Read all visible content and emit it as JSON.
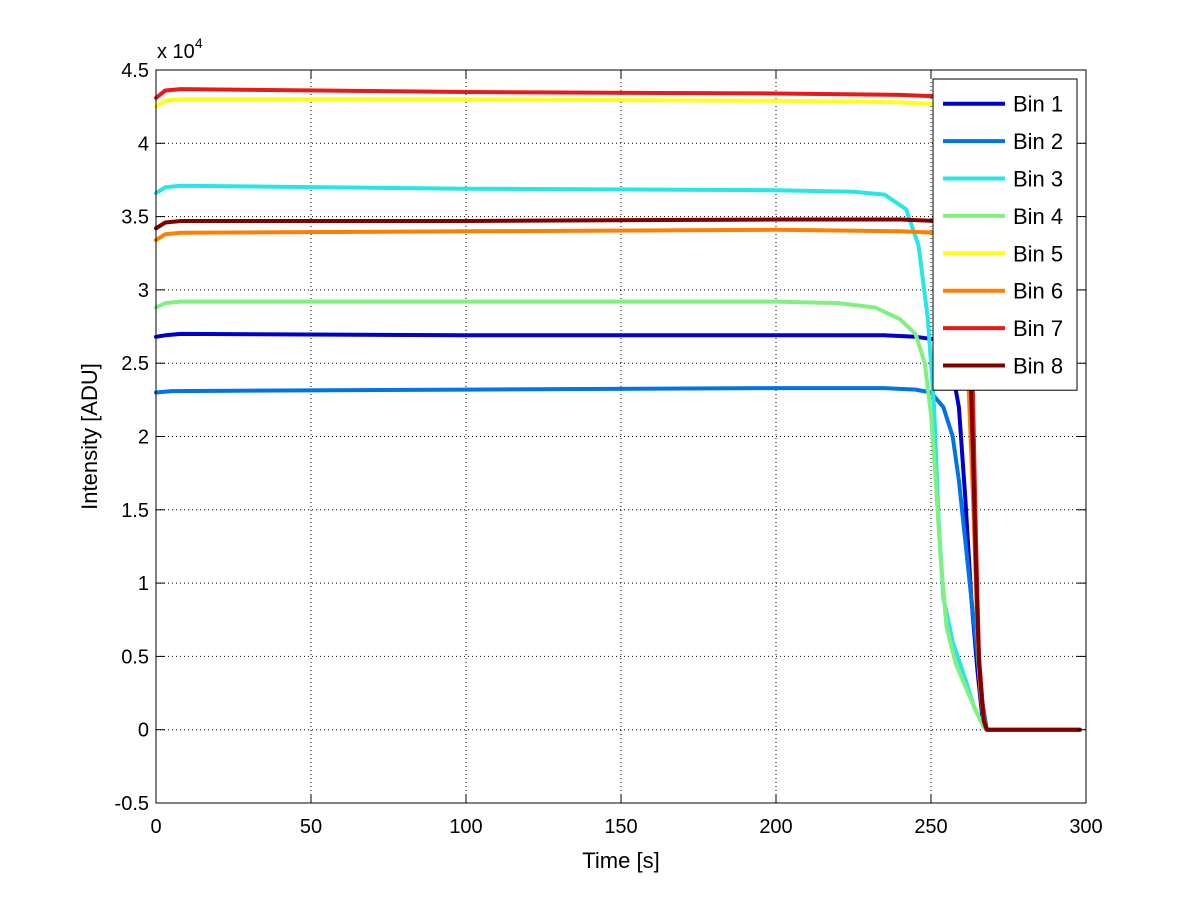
{
  "chart_data": {
    "type": "line",
    "title": "",
    "xlabel": "Time [s]",
    "ylabel": "Intensity [ADU]",
    "exponent_label": {
      "base": "x 10",
      "power": "4"
    },
    "xlim": [
      0,
      300
    ],
    "ylim": [
      -0.5,
      4.5
    ],
    "xticks": [
      0,
      50,
      100,
      150,
      200,
      250,
      300
    ],
    "xtick_labels": [
      "0",
      "50",
      "100",
      "150",
      "200",
      "250",
      "300"
    ],
    "yticks": [
      -0.5,
      0,
      0.5,
      1,
      1.5,
      2,
      2.5,
      3,
      3.5,
      4,
      4.5
    ],
    "ytick_labels": [
      "-0.5",
      "0",
      "0.5",
      "1",
      "1.5",
      "2",
      "2.5",
      "3",
      "3.5",
      "4",
      "4.5"
    ],
    "grid": true,
    "legend_position": "top-right",
    "y_scale_note": "y values in units of 10^4 ADU",
    "series": [
      {
        "name": "Bin 1",
        "color": "#0000cc",
        "points": [
          [
            0,
            2.68
          ],
          [
            3,
            2.69
          ],
          [
            8,
            2.7
          ],
          [
            100,
            2.69
          ],
          [
            200,
            2.69
          ],
          [
            235,
            2.69
          ],
          [
            245,
            2.68
          ],
          [
            252,
            2.66
          ],
          [
            256,
            2.55
          ],
          [
            259,
            2.2
          ],
          [
            261,
            1.6
          ],
          [
            263,
            0.9
          ],
          [
            265,
            0.4
          ],
          [
            266.5,
            0.1
          ],
          [
            268,
            0.0
          ],
          [
            298,
            0.0
          ]
        ]
      },
      {
        "name": "Bin 2",
        "color": "#0073e6",
        "points": [
          [
            0,
            2.3
          ],
          [
            5,
            2.31
          ],
          [
            100,
            2.32
          ],
          [
            200,
            2.33
          ],
          [
            235,
            2.33
          ],
          [
            245,
            2.32
          ],
          [
            250,
            2.3
          ],
          [
            254,
            2.2
          ],
          [
            257,
            2.0
          ],
          [
            259,
            1.7
          ],
          [
            261,
            1.3
          ],
          [
            263,
            0.9
          ],
          [
            265,
            0.5
          ],
          [
            266.5,
            0.2
          ],
          [
            268,
            0.0
          ],
          [
            298,
            0.0
          ]
        ]
      },
      {
        "name": "Bin 3",
        "color": "#26e6e6",
        "points": [
          [
            0,
            3.66
          ],
          [
            3,
            3.7
          ],
          [
            8,
            3.71
          ],
          [
            100,
            3.69
          ],
          [
            200,
            3.68
          ],
          [
            225,
            3.67
          ],
          [
            235,
            3.65
          ],
          [
            242,
            3.55
          ],
          [
            246,
            3.3
          ],
          [
            249,
            2.8
          ],
          [
            251,
            2.2
          ],
          [
            252.5,
            1.4
          ],
          [
            254,
            0.9
          ],
          [
            257,
            0.6
          ],
          [
            261,
            0.35
          ],
          [
            264,
            0.15
          ],
          [
            267,
            0.02
          ],
          [
            268,
            0.0
          ],
          [
            298,
            0.0
          ]
        ]
      },
      {
        "name": "Bin 4",
        "color": "#80f080",
        "points": [
          [
            0,
            2.88
          ],
          [
            3,
            2.91
          ],
          [
            8,
            2.92
          ],
          [
            100,
            2.92
          ],
          [
            200,
            2.92
          ],
          [
            220,
            2.91
          ],
          [
            232,
            2.88
          ],
          [
            240,
            2.8
          ],
          [
            245,
            2.7
          ],
          [
            248,
            2.5
          ],
          [
            250,
            2.15
          ],
          [
            251.5,
            1.7
          ],
          [
            253,
            1.2
          ],
          [
            255,
            0.7
          ],
          [
            258,
            0.45
          ],
          [
            262,
            0.25
          ],
          [
            266,
            0.06
          ],
          [
            268,
            0.0
          ],
          [
            298,
            0.0
          ]
        ]
      },
      {
        "name": "Bin 5",
        "color": "#ffff1a",
        "points": [
          [
            0,
            4.25
          ],
          [
            3,
            4.29
          ],
          [
            8,
            4.3
          ],
          [
            100,
            4.3
          ],
          [
            200,
            4.29
          ],
          [
            240,
            4.28
          ],
          [
            250,
            4.27
          ],
          [
            256,
            4.2
          ],
          [
            260,
            3.8
          ],
          [
            262,
            3.0
          ],
          [
            263.5,
            2.0
          ],
          [
            264.5,
            1.0
          ],
          [
            265.5,
            0.4
          ],
          [
            267,
            0.05
          ],
          [
            268,
            0.0
          ],
          [
            298,
            0.0
          ]
        ]
      },
      {
        "name": "Bin 6",
        "color": "#ff8000",
        "points": [
          [
            0,
            3.34
          ],
          [
            3,
            3.38
          ],
          [
            8,
            3.39
          ],
          [
            100,
            3.4
          ],
          [
            200,
            3.41
          ],
          [
            240,
            3.4
          ],
          [
            252,
            3.39
          ],
          [
            257,
            3.3
          ],
          [
            260,
            3.0
          ],
          [
            262,
            2.4
          ],
          [
            263.5,
            1.6
          ],
          [
            264.8,
            0.8
          ],
          [
            266,
            0.25
          ],
          [
            267.5,
            0.02
          ],
          [
            268,
            0.0
          ],
          [
            298,
            0.0
          ]
        ]
      },
      {
        "name": "Bin 7",
        "color": "#e61a1a",
        "points": [
          [
            0,
            4.31
          ],
          [
            3,
            4.36
          ],
          [
            8,
            4.37
          ],
          [
            100,
            4.35
          ],
          [
            200,
            4.34
          ],
          [
            240,
            4.33
          ],
          [
            252,
            4.32
          ],
          [
            258,
            4.25
          ],
          [
            261,
            3.9
          ],
          [
            262.5,
            3.2
          ],
          [
            263.5,
            2.3
          ],
          [
            264.5,
            1.3
          ],
          [
            265.5,
            0.5
          ],
          [
            267,
            0.08
          ],
          [
            268,
            0.0
          ],
          [
            298,
            0.0
          ]
        ]
      },
      {
        "name": "Bin 8",
        "color": "#800000",
        "points": [
          [
            0,
            3.42
          ],
          [
            3,
            3.46
          ],
          [
            8,
            3.47
          ],
          [
            100,
            3.47
          ],
          [
            200,
            3.48
          ],
          [
            240,
            3.48
          ],
          [
            252,
            3.47
          ],
          [
            258,
            3.4
          ],
          [
            261,
            3.1
          ],
          [
            262.5,
            2.6
          ],
          [
            263.5,
            1.9
          ],
          [
            264.5,
            1.1
          ],
          [
            265.5,
            0.45
          ],
          [
            267,
            0.06
          ],
          [
            268,
            0.0
          ],
          [
            298,
            0.0
          ]
        ]
      }
    ]
  }
}
